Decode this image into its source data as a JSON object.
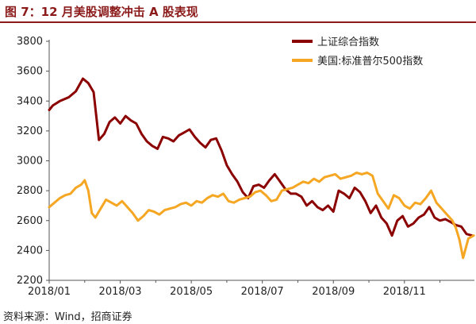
{
  "header": {
    "title": "图 7：12 月美股调整冲击 A 股表现"
  },
  "footer": {
    "source": "资料来源：Wind，招商证券"
  },
  "colors": {
    "shanghai": "#8b0000",
    "sp500": "#f5a623",
    "title": "#8b1a1a"
  },
  "chart_data": {
    "type": "line",
    "title": "",
    "xlabel": "",
    "ylabel": "",
    "ylim": [
      2200,
      3800
    ],
    "yticks": [
      2200,
      2400,
      2600,
      2800,
      3000,
      3200,
      3400,
      3600,
      3800
    ],
    "xticks": [
      "2018/01",
      "2018/03",
      "2018/05",
      "2018/07",
      "2018/09",
      "2018/11"
    ],
    "x_range": [
      0,
      11.97
    ],
    "grid": false,
    "legend_position": "top-right",
    "series": [
      {
        "name": "上证综合指数",
        "color": "#8b0000",
        "x": [
          0,
          0.1,
          0.3,
          0.55,
          0.75,
          0.95,
          1.1,
          1.25,
          1.4,
          1.55,
          1.7,
          1.85,
          2.0,
          2.15,
          2.3,
          2.45,
          2.6,
          2.75,
          2.9,
          3.05,
          3.2,
          3.35,
          3.5,
          3.65,
          3.8,
          3.95,
          4.1,
          4.25,
          4.4,
          4.55,
          4.7,
          4.85,
          5.0,
          5.15,
          5.3,
          5.45,
          5.6,
          5.75,
          5.9,
          6.05,
          6.2,
          6.35,
          6.5,
          6.65,
          6.8,
          6.95,
          7.1,
          7.25,
          7.4,
          7.55,
          7.7,
          7.85,
          8.0,
          8.15,
          8.3,
          8.45,
          8.6,
          8.75,
          8.9,
          9.05,
          9.2,
          9.35,
          9.5,
          9.65,
          9.8,
          9.95,
          10.1,
          10.25,
          10.4,
          10.55,
          10.7,
          10.85,
          11.0,
          11.15,
          11.3,
          11.45,
          11.6,
          11.75,
          11.9
        ],
        "values": [
          3340,
          3370,
          3400,
          3425,
          3465,
          3550,
          3520,
          3460,
          3140,
          3180,
          3260,
          3290,
          3250,
          3300,
          3270,
          3250,
          3180,
          3130,
          3100,
          3080,
          3160,
          3150,
          3130,
          3170,
          3190,
          3210,
          3160,
          3120,
          3090,
          3140,
          3150,
          3070,
          2970,
          2910,
          2860,
          2790,
          2750,
          2830,
          2840,
          2820,
          2870,
          2910,
          2860,
          2810,
          2780,
          2780,
          2760,
          2700,
          2730,
          2690,
          2670,
          2700,
          2660,
          2800,
          2780,
          2750,
          2820,
          2790,
          2730,
          2650,
          2700,
          2620,
          2580,
          2500,
          2600,
          2630,
          2560,
          2580,
          2620,
          2640,
          2690,
          2620,
          2600,
          2610,
          2590,
          2570,
          2560,
          2510,
          2500
        ]
      },
      {
        "name": "美国:标准普尔500指数",
        "color": "#f5a623",
        "x": [
          0,
          0.15,
          0.3,
          0.45,
          0.6,
          0.75,
          0.9,
          1.0,
          1.1,
          1.2,
          1.3,
          1.45,
          1.6,
          1.75,
          1.9,
          2.05,
          2.2,
          2.35,
          2.5,
          2.65,
          2.8,
          2.95,
          3.1,
          3.25,
          3.4,
          3.55,
          3.7,
          3.85,
          4.0,
          4.15,
          4.3,
          4.45,
          4.6,
          4.75,
          4.9,
          5.05,
          5.2,
          5.35,
          5.5,
          5.65,
          5.8,
          5.95,
          6.1,
          6.25,
          6.4,
          6.55,
          6.7,
          6.85,
          7.0,
          7.15,
          7.3,
          7.45,
          7.6,
          7.75,
          7.9,
          8.05,
          8.2,
          8.35,
          8.5,
          8.65,
          8.8,
          8.95,
          9.1,
          9.25,
          9.4,
          9.55,
          9.7,
          9.85,
          10.0,
          10.15,
          10.3,
          10.45,
          10.6,
          10.75,
          10.9,
          11.05,
          11.2,
          11.35,
          11.45,
          11.55,
          11.65,
          11.8,
          11.95
        ],
        "values": [
          2690,
          2720,
          2750,
          2770,
          2780,
          2820,
          2840,
          2870,
          2800,
          2650,
          2620,
          2680,
          2740,
          2720,
          2700,
          2730,
          2690,
          2650,
          2600,
          2630,
          2670,
          2660,
          2640,
          2670,
          2680,
          2690,
          2710,
          2720,
          2700,
          2730,
          2720,
          2750,
          2770,
          2760,
          2780,
          2730,
          2720,
          2740,
          2750,
          2760,
          2790,
          2800,
          2770,
          2730,
          2740,
          2800,
          2810,
          2820,
          2840,
          2860,
          2850,
          2880,
          2860,
          2890,
          2900,
          2910,
          2880,
          2890,
          2900,
          2920,
          2910,
          2920,
          2900,
          2780,
          2730,
          2680,
          2770,
          2750,
          2700,
          2680,
          2720,
          2710,
          2750,
          2800,
          2720,
          2680,
          2640,
          2600,
          2550,
          2470,
          2350,
          2480,
          2500
        ]
      }
    ]
  }
}
